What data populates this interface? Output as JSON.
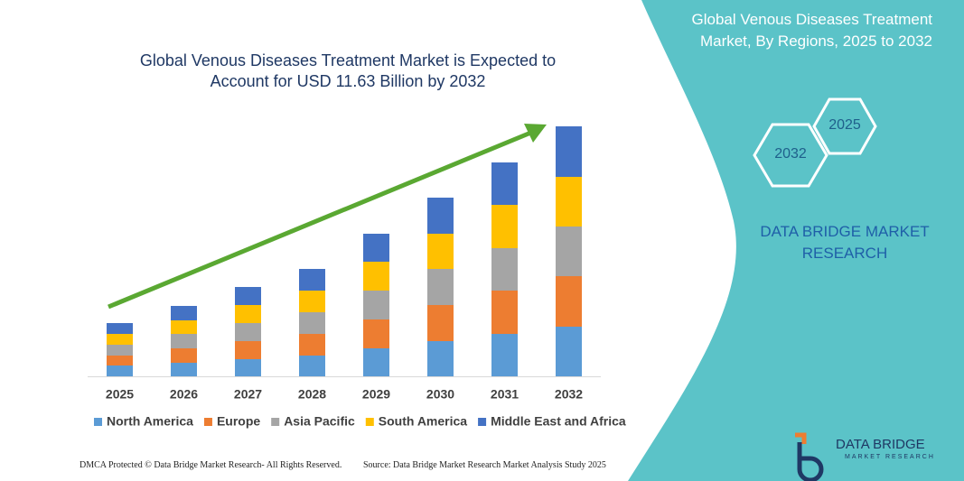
{
  "chart_data": {
    "type": "stacked_bar",
    "title": "Global Venous Diseases Treatment Market is Expected to Account for USD 11.63 Billion by 2032",
    "categories": [
      "2025",
      "2026",
      "2027",
      "2028",
      "2029",
      "2030",
      "2031",
      "2032"
    ],
    "series": [
      {
        "name": "North America",
        "color": "#5b9bd5",
        "values": [
          12,
          15,
          19,
          23,
          31,
          39,
          47,
          55
        ]
      },
      {
        "name": "Europe",
        "color": "#ed7d31",
        "values": [
          11,
          16,
          20,
          24,
          32,
          40,
          48,
          56
        ]
      },
      {
        "name": "Asia Pacific",
        "color": "#a5a5a5",
        "values": [
          12,
          16,
          20,
          24,
          32,
          40,
          47,
          55
        ]
      },
      {
        "name": "South America",
        "color": "#ffc000",
        "values": [
          12,
          15,
          20,
          24,
          32,
          39,
          48,
          55
        ]
      },
      {
        "name": "Middle East and Africa",
        "color": "#4472c4",
        "values": [
          12,
          16,
          20,
          24,
          31,
          40,
          47,
          56
        ]
      }
    ]
  },
  "panel": {
    "title": "Global Venous Diseases Treatment Market, By Regions, 2025 to 2032",
    "hex_upper": "2025",
    "hex_lower": "2032",
    "brand": "DATA BRIDGE MARKET RESEARCH"
  },
  "footer": {
    "left": "DMCA Protected © Data Bridge Market Research- All Rights Reserved.",
    "right": "Source: Data Bridge Market Research Market Analysis Study 2025"
  },
  "logo": {
    "name": "DATA BRIDGE",
    "tagline": "MARKET RESEARCH"
  }
}
